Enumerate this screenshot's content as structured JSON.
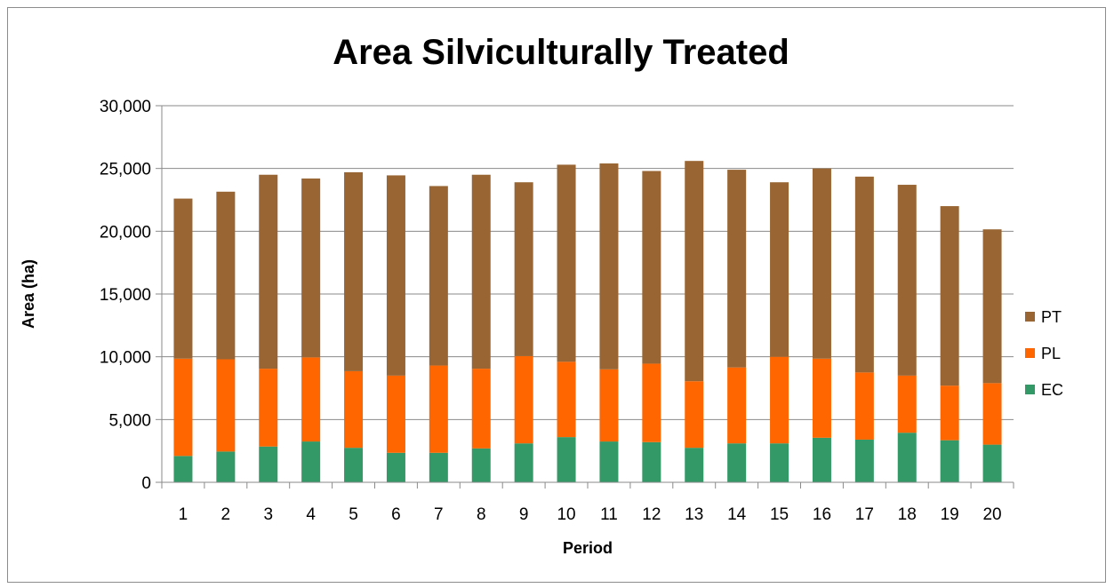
{
  "chart_data": {
    "type": "bar",
    "stacked": true,
    "title": "Area Silviculturally Treated",
    "xlabel": "Period",
    "ylabel": "Area (ha)",
    "ylim": [
      0,
      30000
    ],
    "yticks": [
      "0",
      "5,000",
      "10,000",
      "15,000",
      "20,000",
      "25,000",
      "30,000"
    ],
    "ytick_values": [
      0,
      5000,
      10000,
      15000,
      20000,
      25000,
      30000
    ],
    "grid": "horizontal",
    "legend_position": "right",
    "categories": [
      "1",
      "2",
      "3",
      "4",
      "5",
      "6",
      "7",
      "8",
      "9",
      "10",
      "11",
      "12",
      "13",
      "14",
      "15",
      "16",
      "17",
      "18",
      "19",
      "20"
    ],
    "series": [
      {
        "name": "EC",
        "color": "#339966",
        "values": [
          2100,
          2450,
          2850,
          3250,
          2750,
          2350,
          2350,
          2700,
          3100,
          3600,
          3250,
          3200,
          2750,
          3100,
          3100,
          3550,
          3400,
          3950,
          3350,
          3000
        ]
      },
      {
        "name": "PL",
        "color": "#ff6600",
        "values": [
          7750,
          7350,
          6200,
          6700,
          6100,
          6150,
          6950,
          6350,
          6950,
          6000,
          5750,
          6250,
          5300,
          6050,
          6900,
          6300,
          5350,
          4550,
          4350,
          4900
        ]
      },
      {
        "name": "PT",
        "color": "#996633",
        "values": [
          12750,
          13350,
          15450,
          14250,
          15850,
          15950,
          14300,
          15450,
          13850,
          15700,
          16400,
          15350,
          17550,
          15750,
          13900,
          15150,
          15600,
          15200,
          14300,
          12250
        ]
      }
    ]
  }
}
